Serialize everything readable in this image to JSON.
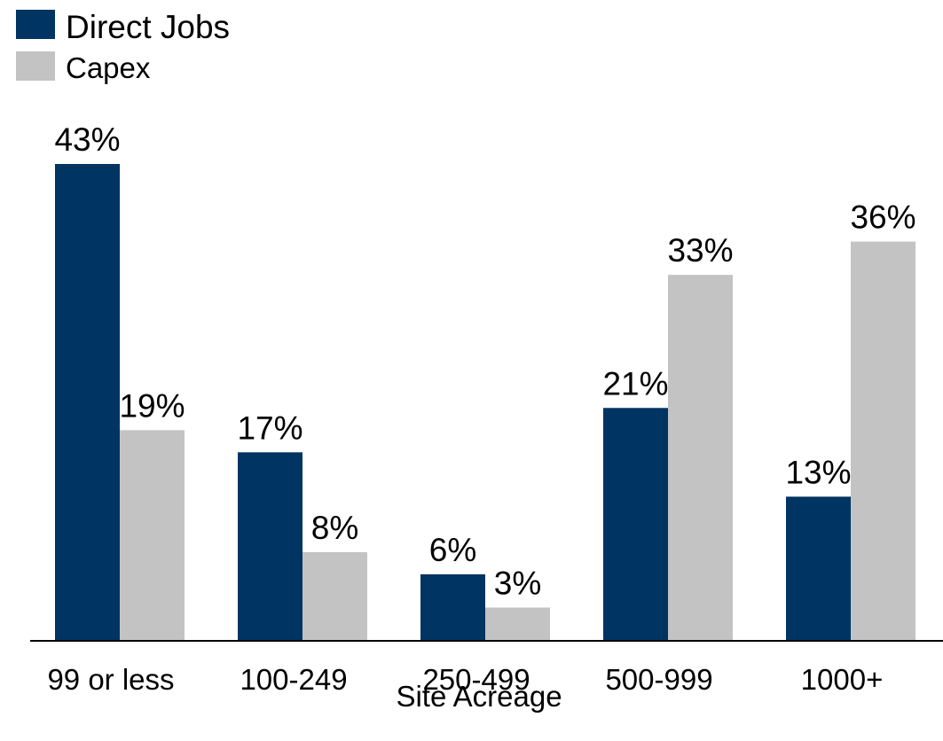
{
  "chart_data": {
    "type": "bar",
    "title": "",
    "xlabel": "Site Acreage",
    "ylabel": "",
    "categories": [
      "99 or less",
      "100-249",
      "250-499",
      "500-999",
      "1000+"
    ],
    "series": [
      {
        "name": "Direct Jobs",
        "color": "#003462",
        "values": [
          43,
          17,
          6,
          21,
          13
        ],
        "labels": [
          "43%",
          "17%",
          "6%",
          "21%",
          "13%"
        ]
      },
      {
        "name": "Capex",
        "color": "#C3C3C3",
        "values": [
          19,
          8,
          3,
          33,
          36
        ],
        "labels": [
          "19%",
          "8%",
          "3%",
          "33%",
          "36%"
        ]
      }
    ],
    "ylim": [
      0,
      43
    ],
    "y_unit": "%",
    "grid": false,
    "legend_position": "top-left",
    "baseline_color": "#000000"
  }
}
